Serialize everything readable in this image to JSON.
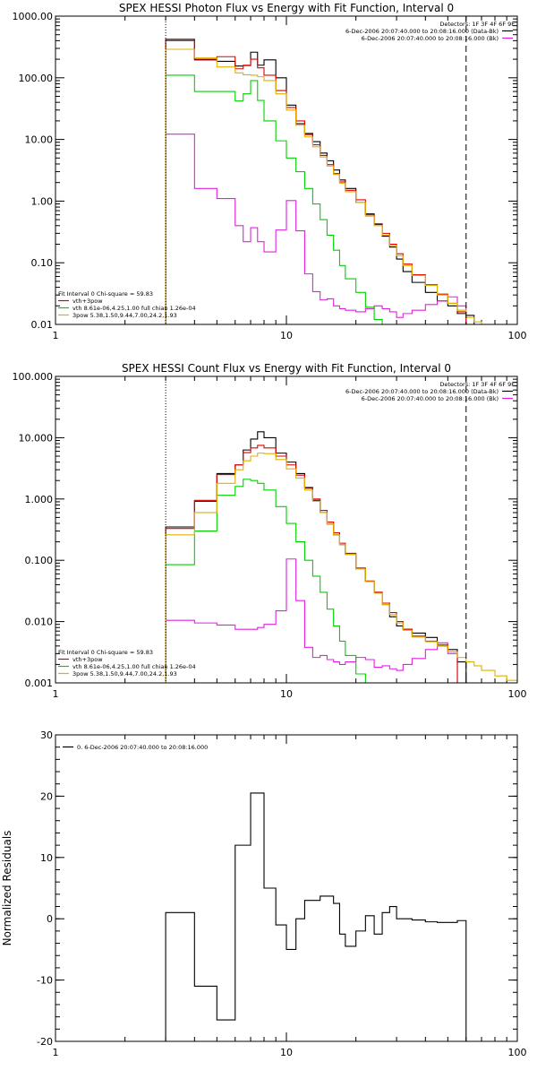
{
  "chart_data": [
    {
      "type": "line",
      "title": "SPEX HESSI Photon Flux vs Energy with Fit Function, Interval 0",
      "xscale": "log",
      "yscale": "log",
      "xlim": [
        1,
        100
      ],
      "ylim": [
        0.01,
        1000
      ],
      "xticks": [
        {
          "v": 1,
          "label": "1"
        },
        {
          "v": 10,
          "label": "10"
        },
        {
          "v": 100,
          "label": "100"
        }
      ],
      "yticks": [
        {
          "v": 0.01,
          "label": "0.01"
        },
        {
          "v": 0.1,
          "label": "0.10"
        },
        {
          "v": 1,
          "label": "1.00"
        },
        {
          "v": 10,
          "label": "10.00"
        },
        {
          "v": 100,
          "label": "100.00"
        },
        {
          "v": 1000,
          "label": "1000.00"
        }
      ],
      "vlines": [
        {
          "x": 3,
          "style": "dotted",
          "color": "#000000"
        },
        {
          "x": 60,
          "style": "dashed",
          "color": "#000000"
        }
      ],
      "legend_topright": [
        {
          "text": "Detectors: 1F 3F 4F 6F 9F",
          "color": ""
        },
        {
          "text": "6-Dec-2006 20:07:40.000 to 20:08:16.000 (Data-Bk)",
          "color": "#000000"
        },
        {
          "text": "6-Dec-2006 20:07:40.000 to 20:08:16.000 (Bk)",
          "color": "#e020e0"
        }
      ],
      "legend_bottomleft": [
        {
          "text": "Fit Interval 0   Chi-square = 59.83",
          "color": ""
        },
        {
          "text": "vth+3pow",
          "color": "#e00000"
        },
        {
          "text": "vth 8.61e-06,4.25,1.00   full chian 1.26e-04",
          "color": "#00d000"
        },
        {
          "text": "3pow 5.38,1.50,9.44,7.00,24.2,1.93",
          "color": "#e0b000"
        }
      ],
      "bin_edges": [
        3,
        4,
        5,
        6,
        6.5,
        7,
        7.5,
        8,
        9,
        10,
        11,
        12,
        13,
        14,
        15,
        16,
        17,
        18,
        20,
        22,
        24,
        26,
        28,
        30,
        32,
        35,
        40,
        45,
        50,
        55,
        60,
        65,
        70,
        80
      ],
      "series": [
        {
          "name": "",
          "color": "#000000",
          "values": [
            420,
            195,
            185,
            155,
            158,
            260,
            160,
            195,
            100,
            36,
            18,
            12.5,
            9.2,
            6,
            4.5,
            3.2,
            2.2,
            1.6,
            0.95,
            0.62,
            0.42,
            0.27,
            0.18,
            0.115,
            0.072,
            0.048,
            0.033,
            0.024,
            0.02,
            0.015,
            0.014,
            null,
            null
          ]
        },
        {
          "name": "",
          "color": "#e020e0",
          "values": [
            12.2,
            1.6,
            1.1,
            0.4,
            0.22,
            0.37,
            0.22,
            0.15,
            0.34,
            1.02,
            0.33,
            0.066,
            0.034,
            0.025,
            0.026,
            0.02,
            0.018,
            0.017,
            0.016,
            0.018,
            0.02,
            0.018,
            0.016,
            0.013,
            0.015,
            0.017,
            0.021,
            0.024,
            0.028,
            0.02,
            null,
            null,
            null
          ]
        },
        {
          "name": "",
          "color": "#00d000",
          "values": [
            110,
            60,
            60,
            42,
            55,
            90,
            43,
            20,
            9.5,
            5.0,
            3.0,
            1.6,
            0.9,
            0.5,
            0.28,
            0.16,
            0.09,
            0.055,
            0.033,
            0.019,
            0.012,
            0.009,
            null,
            null,
            null,
            null,
            null,
            null,
            null,
            null,
            null,
            null,
            null
          ]
        },
        {
          "name": "",
          "color": "#e00000",
          "values": [
            400,
            200,
            220,
            140,
            160,
            200,
            145,
            110,
            62,
            33,
            20,
            12,
            8.2,
            5.5,
            3.9,
            2.8,
            2.05,
            1.5,
            1.05,
            0.6,
            0.43,
            0.3,
            0.2,
            0.14,
            0.095,
            0.064,
            0.044,
            0.031,
            0.022,
            0.016,
            null,
            null,
            null
          ]
        },
        {
          "name": "",
          "color": "#e0b000",
          "values": [
            290,
            210,
            150,
            120,
            112,
            110,
            104,
            90,
            55,
            30,
            17,
            11,
            7.6,
            5.2,
            3.7,
            2.7,
            1.95,
            1.42,
            0.95,
            0.57,
            0.4,
            0.28,
            0.19,
            0.13,
            0.09,
            0.062,
            0.043,
            0.03,
            0.022,
            0.017,
            0.013,
            0.011,
            0.009
          ]
        }
      ]
    },
    {
      "type": "line",
      "title": "SPEX HESSI Count Flux vs Energy with Fit Function, Interval 0",
      "xscale": "log",
      "yscale": "log",
      "xlim": [
        1,
        100
      ],
      "ylim": [
        0.001,
        100
      ],
      "xticks": [
        {
          "v": 1,
          "label": "1"
        },
        {
          "v": 10,
          "label": "10"
        },
        {
          "v": 100,
          "label": "100"
        }
      ],
      "yticks": [
        {
          "v": 0.001,
          "label": "0.001"
        },
        {
          "v": 0.01,
          "label": "0.010"
        },
        {
          "v": 0.1,
          "label": "0.100"
        },
        {
          "v": 1,
          "label": "1.000"
        },
        {
          "v": 10,
          "label": "10.000"
        },
        {
          "v": 100,
          "label": "100.000"
        }
      ],
      "vlines": [
        {
          "x": 3,
          "style": "dotted",
          "color": "#000000"
        },
        {
          "x": 60,
          "style": "dashed",
          "color": "#000000"
        }
      ],
      "legend_topright": [
        {
          "text": "Detectors: 1F 3F 4F 6F 9F",
          "color": ""
        },
        {
          "text": "6-Dec-2006 20:07:40.000 to 20:08:16.000 (Data-Bk)",
          "color": "#000000"
        },
        {
          "text": "6-Dec-2006 20:07:40.000 to 20:08:16.000 (Bk)",
          "color": "#e020e0"
        }
      ],
      "legend_bottomleft": [
        {
          "text": "Fit Interval 0   Chi-square = 59.83",
          "color": ""
        },
        {
          "text": "vth+3pow",
          "color": "#e00000"
        },
        {
          "text": "vth 8.61e-06,4.25,1.00   full chian 1.26e-04",
          "color": "#00d000"
        },
        {
          "text": "3pow 5.38,1.50,9.44,7.00,24.2,1.93",
          "color": "#e0b000"
        }
      ],
      "bin_edges": [
        3,
        4,
        5,
        6,
        6.5,
        7,
        7.5,
        8,
        9,
        10,
        11,
        12,
        13,
        14,
        15,
        16,
        17,
        18,
        20,
        22,
        24,
        26,
        28,
        30,
        32,
        35,
        40,
        45,
        50,
        55,
        60,
        65,
        70,
        80,
        90,
        100
      ],
      "series": [
        {
          "name": "",
          "color": "#000000",
          "values": [
            0.35,
            0.92,
            2.6,
            3.6,
            6.3,
            9.5,
            12.5,
            10,
            5.6,
            4.0,
            2.6,
            1.5,
            0.95,
            0.6,
            0.39,
            0.26,
            0.18,
            0.125,
            0.072,
            0.045,
            0.03,
            0.019,
            0.012,
            0.0085,
            0.0075,
            0.0065,
            0.0055,
            0.004,
            0.0035,
            0.0022,
            null,
            null,
            null,
            null,
            null
          ]
        },
        {
          "name": "",
          "color": "#e020e0",
          "values": [
            0.0105,
            0.0095,
            0.0088,
            0.0075,
            0.0075,
            0.0075,
            0.008,
            0.009,
            0.015,
            0.105,
            0.022,
            0.0038,
            0.0026,
            0.0028,
            0.0024,
            0.0022,
            0.002,
            0.0022,
            0.0026,
            0.0024,
            0.0018,
            0.0019,
            0.0017,
            0.0016,
            0.002,
            0.0025,
            0.0035,
            0.0045,
            0.003,
            null,
            null,
            null,
            null,
            null,
            null
          ]
        },
        {
          "name": "",
          "color": "#00d000",
          "values": [
            0.085,
            0.3,
            1.15,
            1.6,
            2.1,
            2.0,
            1.8,
            1.4,
            0.75,
            0.4,
            0.2,
            0.1,
            0.055,
            0.03,
            0.016,
            0.0085,
            0.0048,
            0.0028,
            0.0014,
            null,
            null,
            null,
            null,
            null,
            null,
            null,
            null,
            null,
            null,
            null,
            null,
            null,
            null,
            null,
            null
          ]
        },
        {
          "name": "",
          "color": "#e00000",
          "values": [
            0.33,
            0.95,
            2.5,
            3.6,
            5.7,
            6.8,
            7.5,
            6.8,
            5.0,
            3.6,
            2.45,
            1.55,
            1.0,
            0.65,
            0.42,
            0.28,
            0.19,
            0.13,
            0.075,
            0.046,
            0.03,
            0.02,
            0.014,
            0.01,
            0.0075,
            0.0058,
            0.0048,
            0.0042,
            0.0032,
            null,
            null,
            null,
            null,
            null,
            null
          ]
        },
        {
          "name": "",
          "color": "#e0b000",
          "values": [
            0.26,
            0.6,
            1.8,
            3.0,
            4.2,
            5.0,
            5.6,
            5.5,
            4.4,
            3.1,
            2.2,
            1.4,
            0.92,
            0.6,
            0.39,
            0.26,
            0.18,
            0.125,
            0.072,
            0.045,
            0.029,
            0.019,
            0.013,
            0.0095,
            0.0072,
            0.0056,
            0.0047,
            0.004,
            0.0032,
            0.0026,
            0.0022,
            0.0019,
            0.0016,
            0.0013,
            0.0011
          ]
        }
      ]
    },
    {
      "type": "line",
      "title": "",
      "xscale": "log",
      "yscale": "linear",
      "xlim": [
        1,
        100
      ],
      "ylim": [
        -20,
        30
      ],
      "ylabel": "Normalized Residuals",
      "xticks": [
        {
          "v": 1,
          "label": "1"
        },
        {
          "v": 10,
          "label": "10"
        },
        {
          "v": 100,
          "label": "100"
        }
      ],
      "yticks": [
        {
          "v": -20,
          "label": "-20"
        },
        {
          "v": -10,
          "label": "-10"
        },
        {
          "v": 0,
          "label": "0"
        },
        {
          "v": 10,
          "label": "10"
        },
        {
          "v": 20,
          "label": "20"
        },
        {
          "v": 30,
          "label": "30"
        }
      ],
      "vlines": [],
      "legend_topleft": [
        {
          "text": "0.  6-Dec-2006 20:07:40.000 to 20:08:16.000",
          "color": "#000000"
        }
      ],
      "bin_edges": [
        3,
        4,
        5,
        6,
        6.5,
        7,
        7.5,
        8,
        9,
        10,
        11,
        12,
        13,
        14,
        15,
        16,
        17,
        18,
        20,
        22,
        24,
        26,
        28,
        30,
        32,
        35,
        40,
        45,
        50,
        55,
        60
      ],
      "series": [
        {
          "name": "",
          "color": "#000000",
          "values": [
            1,
            -11,
            -16.5,
            12,
            12,
            20.5,
            20.5,
            5,
            -1,
            -5,
            0,
            3,
            3,
            3.7,
            3.7,
            2.5,
            -2.5,
            -4.5,
            -2,
            0.5,
            -2.5,
            1,
            2,
            0,
            0,
            -0.2,
            -0.5,
            -0.6,
            -0.6,
            -0.3
          ]
        }
      ],
      "extend_to_bottom": true
    }
  ]
}
